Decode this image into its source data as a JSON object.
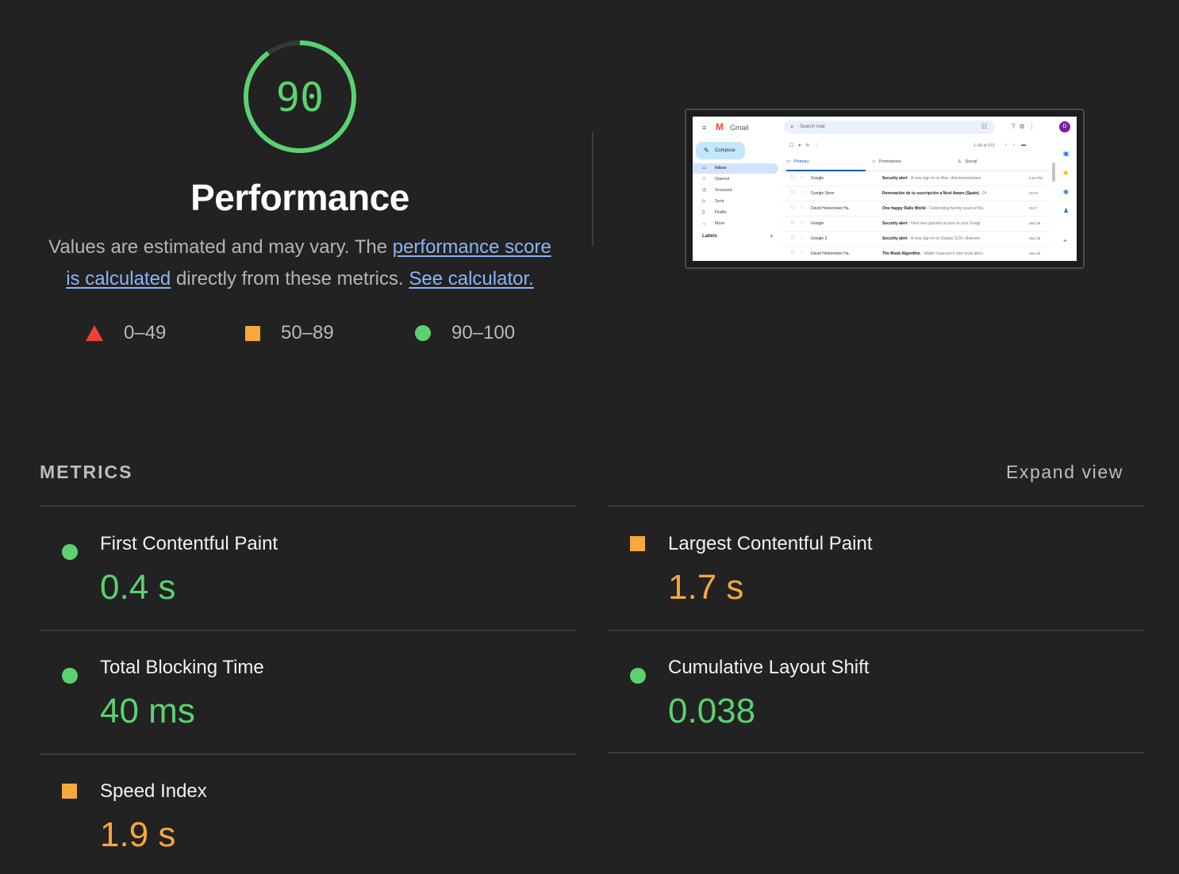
{
  "gauge": {
    "score": "90",
    "score_fraction": 0.9,
    "color": "#5bd26f"
  },
  "performance": {
    "title": "Performance",
    "desc_prefix": "Values are estimated and may vary. The ",
    "link_score_a": "performance score",
    "link_score_b": "is calculated",
    "desc_middle": " directly from these metrics. ",
    "link_calculator": "See calculator."
  },
  "legend": [
    {
      "range": "0–49",
      "shape": "triangle-icon",
      "color": "#eb4335"
    },
    {
      "range": "50–89",
      "shape": "square-icon",
      "color": "#f5a83c"
    },
    {
      "range": "90–100",
      "shape": "circle-icon",
      "color": "#5bd26f"
    }
  ],
  "thumbnail": {
    "app_name": "Gmail",
    "search_placeholder": "Search mail",
    "avatar_letter": "D",
    "compose": "Compose",
    "nav": [
      "Inbox",
      "Starred",
      "Snoozed",
      "Sent",
      "Drafts",
      "More"
    ],
    "labels": "Labels",
    "count": "1–50 of 473",
    "tabs": [
      "Primary",
      "Promotions",
      "Social"
    ],
    "rows": [
      {
        "from": "Google",
        "subject": "Security alert",
        "snippet": " - A new sign-in on Mac: dheinemeierhans",
        "date": "4:23 PM"
      },
      {
        "from": "Google Store",
        "subject": "Renovación de tu suscripción a Nest Aware (Spain)",
        "snippet": " - Dr",
        "date": "Oct 8"
      },
      {
        "from": "David Heinemeier Ha.",
        "subject": "One happy Rails World",
        "snippet": " - Celebrating twenty years of Ra",
        "date": "Oct 7"
      },
      {
        "from": "Google",
        "subject": "Security alert",
        "snippet": " - Nest was granted access to your Googl",
        "date": "Sep 29"
      },
      {
        "from": "Google 2",
        "subject": "Security alert",
        "snippet": " - A new sign-in on Galaxy S23+ dheinem",
        "date": "Sep 28"
      },
      {
        "from": "David Heinemeier Ha.",
        "subject": "The Musk Algorithm",
        "snippet": " - Walter Isaacson's new book abou",
        "date": "Sep 25"
      }
    ]
  },
  "metrics_section": {
    "heading": "METRICS",
    "expand": "Expand view"
  },
  "metrics": [
    {
      "label": "First Contentful Paint",
      "value": "0.4 s",
      "status": "good"
    },
    {
      "label": "Largest Contentful Paint",
      "value": "1.7 s",
      "status": "average"
    },
    {
      "label": "Total Blocking Time",
      "value": "40 ms",
      "status": "good"
    },
    {
      "label": "Cumulative Layout Shift",
      "value": "0.038",
      "status": "good"
    },
    {
      "label": "Speed Index",
      "value": "1.9 s",
      "status": "average"
    }
  ],
  "colors": {
    "good": "#5bd26f",
    "average": "#f5a83c",
    "poor": "#eb4335",
    "link": "#8ab4f8",
    "background": "#222222"
  }
}
